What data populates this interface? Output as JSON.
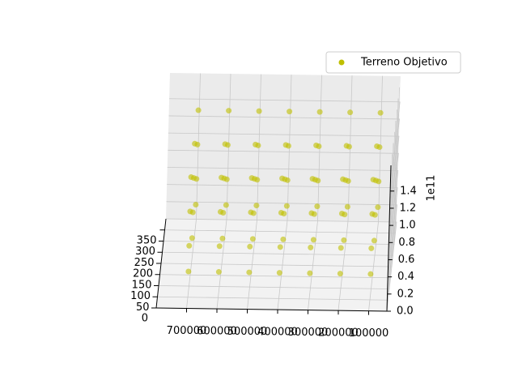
{
  "chart_data": {
    "type": "scatter3d",
    "series": [
      {
        "name": "Terreno Objetivo",
        "color": "#bfbf00",
        "x": [
          100000,
          100000,
          100000,
          100000,
          100000,
          100000,
          100000,
          100000,
          100000,
          100000,
          100000,
          100000,
          200000,
          200000,
          200000,
          200000,
          200000,
          200000,
          200000,
          200000,
          200000,
          200000,
          200000,
          200000,
          300000,
          300000,
          300000,
          300000,
          300000,
          300000,
          300000,
          300000,
          300000,
          300000,
          300000,
          300000,
          400000,
          400000,
          400000,
          400000,
          400000,
          400000,
          400000,
          400000,
          400000,
          400000,
          400000,
          400000,
          500000,
          500000,
          500000,
          500000,
          500000,
          500000,
          500000,
          500000,
          500000,
          500000,
          500000,
          500000,
          600000,
          600000,
          600000,
          600000,
          600000,
          600000,
          600000,
          600000,
          600000,
          600000,
          600000,
          600000,
          700000,
          700000,
          700000,
          700000,
          700000,
          700000,
          700000,
          700000,
          700000,
          700000,
          700000,
          700000
        ],
        "y": [
          50,
          50,
          50,
          50,
          200,
          200,
          200,
          200,
          350,
          350,
          350,
          350,
          50,
          50,
          50,
          50,
          200,
          200,
          200,
          200,
          350,
          350,
          350,
          350,
          50,
          50,
          50,
          50,
          200,
          200,
          200,
          200,
          350,
          350,
          350,
          350,
          50,
          50,
          50,
          50,
          200,
          200,
          200,
          200,
          350,
          350,
          350,
          350,
          50,
          50,
          50,
          50,
          200,
          200,
          200,
          200,
          350,
          350,
          350,
          350,
          50,
          50,
          50,
          50,
          200,
          200,
          200,
          200,
          350,
          350,
          350,
          350,
          50,
          50,
          50,
          50,
          200,
          200,
          200,
          200,
          350,
          350,
          350,
          350
        ],
        "z": [
          0.3,
          0.6,
          1.0,
          1.4,
          0.3,
          0.6,
          1.0,
          1.4,
          0.3,
          0.6,
          1.0,
          1.4,
          0.3,
          0.6,
          1.0,
          1.4,
          0.3,
          0.6,
          1.0,
          1.4,
          0.3,
          0.6,
          1.0,
          1.4,
          0.3,
          0.6,
          1.0,
          1.4,
          0.3,
          0.6,
          1.0,
          1.4,
          0.3,
          0.6,
          1.0,
          1.4,
          0.3,
          0.6,
          1.0,
          1.4,
          0.3,
          0.6,
          1.0,
          1.4,
          0.3,
          0.6,
          1.0,
          1.4,
          0.3,
          0.6,
          1.0,
          1.4,
          0.3,
          0.6,
          1.0,
          1.4,
          0.3,
          0.6,
          1.0,
          1.4,
          0.3,
          0.6,
          1.0,
          1.4,
          0.3,
          0.6,
          1.0,
          1.4,
          0.3,
          0.6,
          1.0,
          1.4,
          0.3,
          0.6,
          1.0,
          1.4,
          0.3,
          0.6,
          1.0,
          1.4,
          0.3,
          0.6,
          1.0,
          1.4
        ]
      }
    ],
    "xlim": [
      40000,
      800000
    ],
    "ylim": [
      0,
      400
    ],
    "zlim": [
      0,
      1.7
    ],
    "xticks": [
      100000,
      200000,
      300000,
      400000,
      500000,
      600000,
      700000
    ],
    "yticks": [
      0,
      50,
      100,
      150,
      200,
      250,
      300,
      350
    ],
    "zticks": [
      {
        "value": 0,
        "label": "0.0"
      },
      0.2,
      0.4,
      0.6,
      0.8,
      {
        "value": 1,
        "label": "1.0"
      },
      1.2,
      1.4
    ],
    "z_offset_label": "1e11",
    "x_inverted": true,
    "legend": "upper right",
    "grid": true
  }
}
